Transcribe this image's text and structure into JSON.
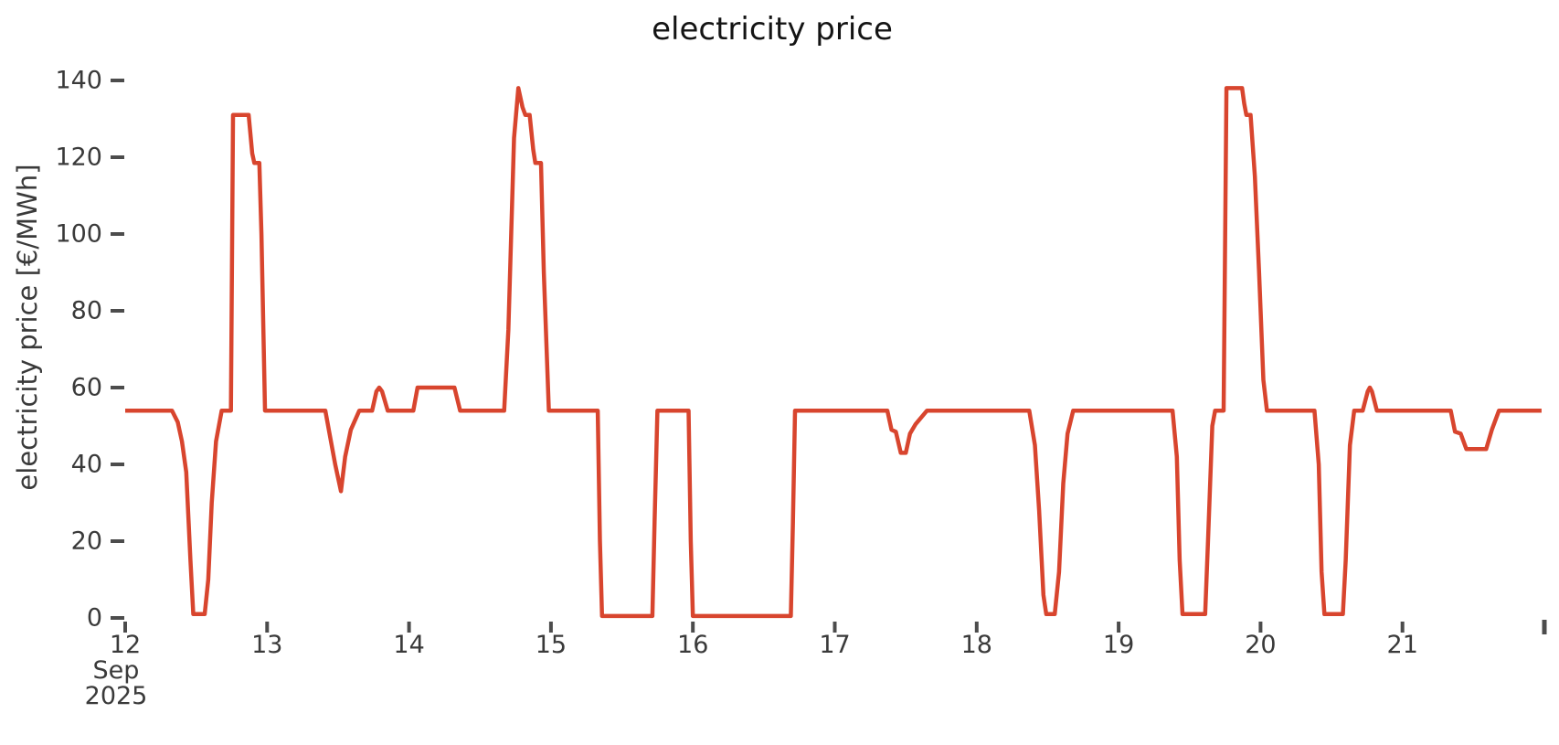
{
  "chart_data": {
    "type": "line",
    "title": "electricity price",
    "xlabel": "",
    "ylabel": "electricity price [€/MWh]",
    "grid": false,
    "legend": false,
    "x_axis": {
      "unit": "day of month",
      "range": [
        12,
        22
      ],
      "tick_values": [
        12,
        13,
        14,
        15,
        16,
        17,
        18,
        19,
        20,
        21
      ],
      "tick_labels": [
        "12",
        "13",
        "14",
        "15",
        "16",
        "17",
        "18",
        "19",
        "20",
        "21"
      ],
      "edge_tick_value": 22,
      "month_label": "Sep",
      "year_label": "2025"
    },
    "y_axis": {
      "range": [
        -2,
        146
      ],
      "tick_values": [
        0,
        20,
        40,
        60,
        80,
        100,
        120,
        140
      ],
      "tick_labels": [
        "0",
        "20",
        "40",
        "60",
        "80",
        "100",
        "120",
        "140"
      ]
    },
    "baseline_value": 54,
    "series": [
      {
        "name": "electricity price",
        "color": "#d8452e",
        "points": [
          [
            12.0,
            54
          ],
          [
            12.33,
            54
          ],
          [
            12.37,
            51
          ],
          [
            12.4,
            46
          ],
          [
            12.43,
            38
          ],
          [
            12.46,
            15
          ],
          [
            12.48,
            1
          ],
          [
            12.56,
            1
          ],
          [
            12.585,
            10
          ],
          [
            12.61,
            30
          ],
          [
            12.64,
            46
          ],
          [
            12.68,
            54
          ],
          [
            12.745,
            54
          ],
          [
            12.76,
            131
          ],
          [
            12.87,
            131
          ],
          [
            12.895,
            121
          ],
          [
            12.91,
            118.5
          ],
          [
            12.945,
            118.5
          ],
          [
            12.96,
            100
          ],
          [
            12.985,
            54
          ],
          [
            13.41,
            54
          ],
          [
            13.44,
            48
          ],
          [
            13.48,
            40
          ],
          [
            13.52,
            33
          ],
          [
            13.55,
            42
          ],
          [
            13.59,
            49
          ],
          [
            13.65,
            54
          ],
          [
            13.74,
            54
          ],
          [
            13.77,
            59
          ],
          [
            13.79,
            60
          ],
          [
            13.81,
            59
          ],
          [
            13.85,
            54
          ],
          [
            14.03,
            54
          ],
          [
            14.06,
            60
          ],
          [
            14.32,
            60
          ],
          [
            14.36,
            54
          ],
          [
            14.67,
            54
          ],
          [
            14.7,
            75
          ],
          [
            14.74,
            125
          ],
          [
            14.77,
            138
          ],
          [
            14.8,
            133
          ],
          [
            14.82,
            131
          ],
          [
            14.85,
            131
          ],
          [
            14.875,
            122
          ],
          [
            14.89,
            118.5
          ],
          [
            14.93,
            118.5
          ],
          [
            14.95,
            90
          ],
          [
            14.985,
            54
          ],
          [
            15.33,
            54
          ],
          [
            15.345,
            20
          ],
          [
            15.36,
            0.5
          ],
          [
            15.715,
            0.5
          ],
          [
            15.73,
            25
          ],
          [
            15.75,
            54
          ],
          [
            15.97,
            54
          ],
          [
            15.985,
            20
          ],
          [
            16.0,
            0.5
          ],
          [
            16.69,
            0.5
          ],
          [
            16.705,
            25
          ],
          [
            16.72,
            54
          ],
          [
            17.37,
            54
          ],
          [
            17.4,
            49
          ],
          [
            17.43,
            48.5
          ],
          [
            17.465,
            43
          ],
          [
            17.5,
            43
          ],
          [
            17.53,
            48
          ],
          [
            17.57,
            50.5
          ],
          [
            17.65,
            54
          ],
          [
            18.37,
            54
          ],
          [
            18.41,
            45
          ],
          [
            18.44,
            28
          ],
          [
            18.47,
            6
          ],
          [
            18.49,
            1
          ],
          [
            18.55,
            1
          ],
          [
            18.58,
            12
          ],
          [
            18.61,
            35
          ],
          [
            18.64,
            48
          ],
          [
            18.68,
            54
          ],
          [
            19.38,
            54
          ],
          [
            19.41,
            42
          ],
          [
            19.43,
            15
          ],
          [
            19.45,
            1
          ],
          [
            19.61,
            1
          ],
          [
            19.63,
            20
          ],
          [
            19.66,
            50
          ],
          [
            19.68,
            54
          ],
          [
            19.74,
            54
          ],
          [
            19.76,
            138
          ],
          [
            19.87,
            138
          ],
          [
            19.885,
            134
          ],
          [
            19.9,
            131
          ],
          [
            19.93,
            131
          ],
          [
            19.96,
            115
          ],
          [
            19.99,
            90
          ],
          [
            20.02,
            62
          ],
          [
            20.045,
            54
          ],
          [
            20.38,
            54
          ],
          [
            20.41,
            40
          ],
          [
            20.43,
            12
          ],
          [
            20.45,
            1
          ],
          [
            20.58,
            1
          ],
          [
            20.6,
            15
          ],
          [
            20.63,
            45
          ],
          [
            20.66,
            54
          ],
          [
            20.72,
            54
          ],
          [
            20.755,
            59
          ],
          [
            20.77,
            60
          ],
          [
            20.785,
            59
          ],
          [
            20.82,
            54
          ],
          [
            21.34,
            54
          ],
          [
            21.37,
            48.5
          ],
          [
            21.41,
            48
          ],
          [
            21.45,
            44
          ],
          [
            21.59,
            44
          ],
          [
            21.63,
            49
          ],
          [
            21.68,
            54
          ],
          [
            21.98,
            54
          ]
        ]
      }
    ],
    "colors": {
      "line": "#d8452e",
      "tick_text": "#3a3a3a",
      "tick_mark": "#4c4c4c",
      "title_text": "#141414",
      "background": "#ffffff"
    }
  }
}
